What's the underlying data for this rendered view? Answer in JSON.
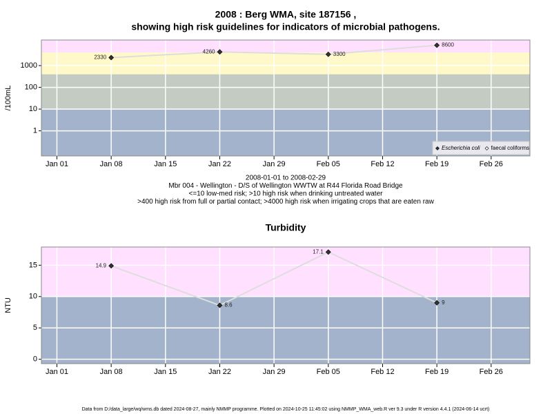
{
  "chart_data": [
    {
      "type": "line",
      "title": "2008 : Berg WMA, site 187156 ,",
      "subtitle": "showing high risk guidelines for indicators of microbial pathogens.",
      "y_label": "/100mL",
      "log_scale": true,
      "x": [
        "2008-01-08",
        "2008-01-22",
        "2008-02-05",
        "2008-02-19"
      ],
      "series": [
        {
          "name": "Escherichia coli",
          "color": "#333333",
          "values": [
            2330,
            4260,
            3300,
            8600
          ]
        },
        {
          "name": "faecal coliforms",
          "color": "#ffffff",
          "values": [
            null,
            null,
            null,
            null
          ]
        }
      ],
      "xlim": [
        "2007-12-30",
        "2008-03-02"
      ],
      "xticks": [
        {
          "value": "2008-01-01",
          "label": "Jan 01"
        },
        {
          "value": "2008-01-08",
          "label": "Jan 08"
        },
        {
          "value": "2008-01-15",
          "label": "Jan 15"
        },
        {
          "value": "2008-01-22",
          "label": "Jan 22"
        },
        {
          "value": "2008-01-29",
          "label": "Jan 29"
        },
        {
          "value": "2008-02-05",
          "label": "Feb 05"
        },
        {
          "value": "2008-02-12",
          "label": "Feb 12"
        },
        {
          "value": "2008-02-19",
          "label": "Feb 19"
        },
        {
          "value": "2008-02-26",
          "label": "Feb 26"
        }
      ],
      "ylim": [
        0.07,
        15000
      ],
      "yticks": [
        1,
        10,
        100,
        1000
      ],
      "bands": [
        {
          "max": 10,
          "color": "#a3b3cb"
        },
        {
          "max": 400,
          "color": "#c3cbc3"
        },
        {
          "max": 4000,
          "color": "#fff9c9"
        },
        {
          "color": "#ffe1ff"
        }
      ],
      "grid": true,
      "legend": "bottom-right",
      "notes": [
        "2008-01-01 to 2008-02-29",
        "Mbr 004 - Wellington - D/S of Wellington WWTW at R44 Florida Road Bridge",
        "<=10 low-med risk; >10 high risk when drinking untreated water",
        ">400 high risk from full or partial contact; >4000 high risk when irrigating crops that are eaten raw"
      ]
    },
    {
      "type": "line",
      "title": "Turbidity",
      "y_label": "NTU",
      "log_scale": false,
      "x": [
        "2008-01-08",
        "2008-01-22",
        "2008-02-05",
        "2008-02-19"
      ],
      "series": [
        {
          "name": "Turbidity",
          "color": "#333333",
          "values": [
            14.9,
            8.6,
            17.1,
            9
          ]
        }
      ],
      "xlim": [
        "2007-12-30",
        "2008-03-02"
      ],
      "xticks": [
        {
          "value": "2008-01-01",
          "label": "Jan 01"
        },
        {
          "value": "2008-01-08",
          "label": "Jan 08"
        },
        {
          "value": "2008-01-15",
          "label": "Jan 15"
        },
        {
          "value": "2008-01-22",
          "label": "Jan 22"
        },
        {
          "value": "2008-01-29",
          "label": "Jan 29"
        },
        {
          "value": "2008-02-05",
          "label": "Feb 05"
        },
        {
          "value": "2008-02-12",
          "label": "Feb 12"
        },
        {
          "value": "2008-02-19",
          "label": "Feb 19"
        },
        {
          "value": "2008-02-26",
          "label": "Feb 26"
        }
      ],
      "ylim": [
        -0.7,
        17.9
      ],
      "yticks": [
        0,
        5,
        10,
        15
      ],
      "bands": [
        {
          "max": 10,
          "color": "#a3b3cb"
        },
        {
          "color": "#ffe1ff"
        }
      ],
      "grid": true
    }
  ],
  "footer": "Data from D:/data_large/wq/wms.db dated 2024-08-27, mainly NMMP programme. Plotted on 2024-10-25 11:45:02 using NMMP_WMA_web.R ver 9.3 under R version 4.4.1 (2024-06-14 ucrt)"
}
